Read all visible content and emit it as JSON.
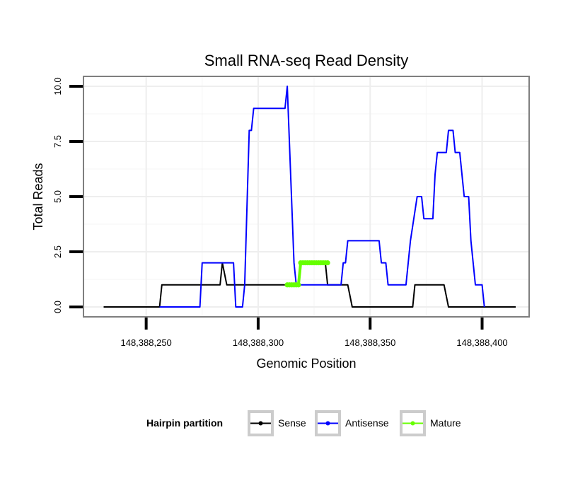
{
  "chart_data": {
    "type": "line",
    "title": "Small RNA-seq Read Density",
    "xlabel": "Genomic Position",
    "ylabel": "Total Reads",
    "xlim": [
      148388222,
      148388421
    ],
    "ylim": [
      -0.45,
      10.45
    ],
    "x_ticks": [
      148388250,
      148388300,
      148388350,
      148388400
    ],
    "x_tick_labels": [
      "148,388,250",
      "148,388,300",
      "148,388,350",
      "148,388,400"
    ],
    "y_ticks": [
      0,
      2.5,
      5,
      7.5,
      10
    ],
    "y_tick_labels": [
      "0.0",
      "2.5",
      "5.0",
      "7.5",
      "10.0"
    ],
    "grid": true,
    "legend": {
      "title": "Hairpin partition",
      "position": "bottom",
      "entries": [
        "Sense",
        "Antisense",
        "Mature"
      ]
    },
    "series": [
      {
        "name": "Sense",
        "color": "#000000",
        "points": [
          [
            148388231,
            0
          ],
          [
            148388256,
            0
          ],
          [
            148388257,
            1
          ],
          [
            148388283,
            1
          ],
          [
            148388284,
            2
          ],
          [
            148388286,
            1
          ],
          [
            148388318,
            1
          ],
          [
            148388319,
            2
          ],
          [
            148388330,
            2
          ],
          [
            148388331,
            1
          ],
          [
            148388340,
            1
          ],
          [
            148388342,
            0
          ],
          [
            148388369,
            0
          ],
          [
            148388370,
            1
          ],
          [
            148388383,
            1
          ],
          [
            148388385,
            0
          ],
          [
            148388415,
            0
          ]
        ]
      },
      {
        "name": "Antisense",
        "color": "#0000ff",
        "points": [
          [
            148388256,
            0
          ],
          [
            148388274,
            0
          ],
          [
            148388275,
            2
          ],
          [
            148388289,
            2
          ],
          [
            148388290,
            0
          ],
          [
            148388293,
            0
          ],
          [
            148388294,
            1
          ],
          [
            148388296,
            8
          ],
          [
            148388297,
            8
          ],
          [
            148388298,
            9
          ],
          [
            148388312,
            9
          ],
          [
            148388313,
            10
          ],
          [
            148388316,
            2
          ],
          [
            148388317,
            1
          ],
          [
            148388337,
            1
          ],
          [
            148388338,
            2
          ],
          [
            148388339,
            2
          ],
          [
            148388340,
            3
          ],
          [
            148388354,
            3
          ],
          [
            148388355,
            2
          ],
          [
            148388357,
            2
          ],
          [
            148388358,
            1
          ],
          [
            148388366,
            1
          ],
          [
            148388368,
            3
          ],
          [
            148388371,
            5
          ],
          [
            148388373,
            5
          ],
          [
            148388374,
            4
          ],
          [
            148388378,
            4
          ],
          [
            148388379,
            6
          ],
          [
            148388380,
            7
          ],
          [
            148388384,
            7
          ],
          [
            148388385,
            8
          ],
          [
            148388387,
            8
          ],
          [
            148388388,
            7
          ],
          [
            148388390,
            7
          ],
          [
            148388392,
            5
          ],
          [
            148388394,
            5
          ],
          [
            148388395,
            3
          ],
          [
            148388397,
            1
          ],
          [
            148388400,
            1
          ],
          [
            148388401,
            0
          ]
        ]
      },
      {
        "name": "Mature",
        "color": "#66ff00",
        "points": [
          [
            148388313,
            1
          ],
          [
            148388318,
            1
          ],
          [
            148388319,
            2
          ],
          [
            148388331,
            2
          ]
        ]
      }
    ]
  }
}
